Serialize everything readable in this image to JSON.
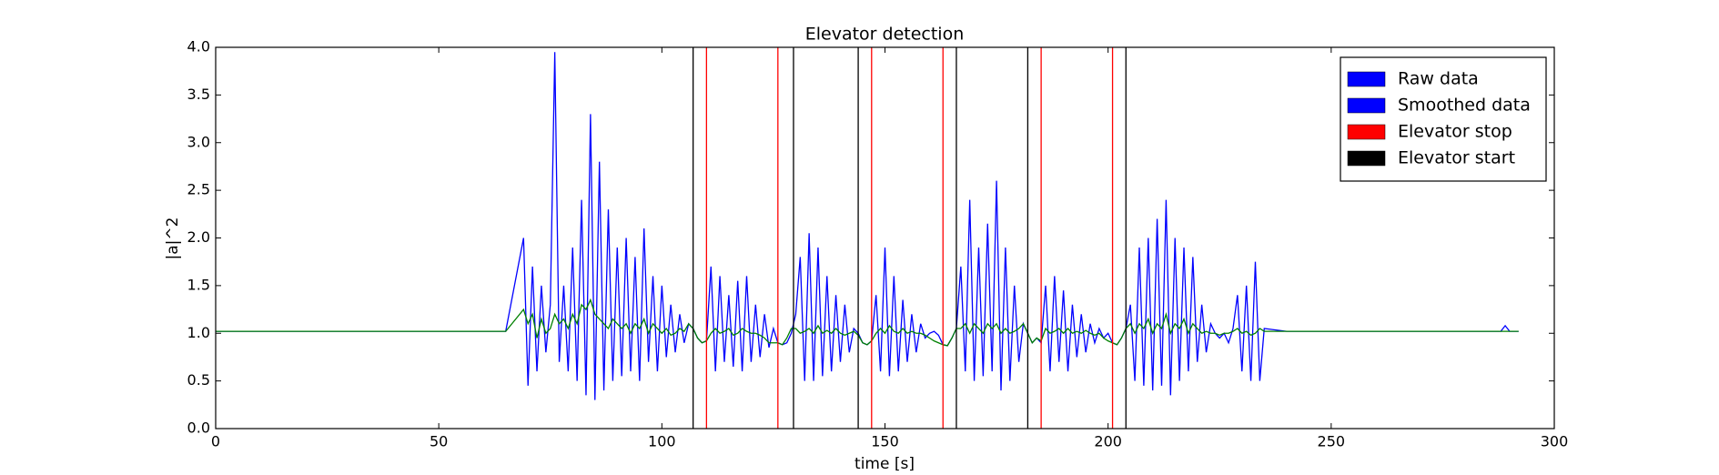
{
  "chart_data": {
    "type": "line",
    "title": "Elevator detection",
    "xlabel": "time [s]",
    "ylabel": "|a|^2",
    "x": [
      0,
      10,
      20,
      30,
      40,
      50,
      60,
      65,
      69,
      70,
      71,
      72,
      73,
      74,
      75,
      76,
      77,
      78,
      79,
      80,
      81,
      82,
      83,
      84,
      85,
      86,
      87,
      88,
      89,
      90,
      91,
      92,
      93,
      94,
      95,
      96,
      97,
      98,
      99,
      100,
      101,
      102,
      103,
      104,
      105,
      106,
      107,
      108,
      109,
      110,
      111,
      112,
      113,
      114,
      115,
      116,
      117,
      118,
      119,
      120,
      121,
      122,
      123,
      124,
      125,
      126,
      127,
      128,
      129,
      130,
      131,
      132,
      133,
      134,
      135,
      136,
      137,
      138,
      139,
      140,
      141,
      142,
      143,
      144,
      145,
      146,
      147,
      148,
      149,
      150,
      151,
      152,
      153,
      154,
      155,
      156,
      157,
      158,
      159,
      160,
      161,
      162,
      163,
      164,
      165,
      166,
      167,
      168,
      169,
      170,
      171,
      172,
      173,
      174,
      175,
      176,
      177,
      178,
      179,
      180,
      181,
      182,
      183,
      184,
      185,
      186,
      187,
      188,
      189,
      190,
      191,
      192,
      193,
      194,
      195,
      196,
      197,
      198,
      199,
      200,
      201,
      202,
      203,
      204,
      205,
      206,
      207,
      208,
      209,
      210,
      211,
      212,
      213,
      214,
      215,
      216,
      217,
      218,
      219,
      220,
      221,
      222,
      223,
      224,
      225,
      226,
      227,
      228,
      229,
      230,
      231,
      232,
      233,
      234,
      235,
      240,
      250,
      260,
      270,
      280,
      288,
      289,
      290,
      292
    ],
    "series": [
      {
        "name": "Raw data",
        "color": "#0000ff",
        "values": [
          1.02,
          1.02,
          1.02,
          1.02,
          1.02,
          1.02,
          1.02,
          1.02,
          2.0,
          0.45,
          1.7,
          0.6,
          1.5,
          0.8,
          1.3,
          3.95,
          0.7,
          1.5,
          0.6,
          1.9,
          0.5,
          2.4,
          0.35,
          3.3,
          0.3,
          2.8,
          0.4,
          2.3,
          0.5,
          1.9,
          0.55,
          2.0,
          0.6,
          1.8,
          0.5,
          2.1,
          0.7,
          1.6,
          0.6,
          1.5,
          0.75,
          1.3,
          0.8,
          1.2,
          0.9,
          1.1,
          1.05,
          0.95,
          0.9,
          0.92,
          1.7,
          0.6,
          1.6,
          0.7,
          1.4,
          0.65,
          1.55,
          0.6,
          1.6,
          0.7,
          1.3,
          0.75,
          1.2,
          0.85,
          1.05,
          0.9,
          0.88,
          0.9,
          1.0,
          1.2,
          1.8,
          0.5,
          2.05,
          0.5,
          1.9,
          0.55,
          1.6,
          0.6,
          1.4,
          0.7,
          1.3,
          0.8,
          1.05,
          1.0,
          0.9,
          0.88,
          0.92,
          1.4,
          0.6,
          1.9,
          0.55,
          1.6,
          0.6,
          1.35,
          0.7,
          1.2,
          0.8,
          1.1,
          0.95,
          1.0,
          1.02,
          0.98,
          0.88,
          0.87,
          0.95,
          1.05,
          1.7,
          0.6,
          2.4,
          0.5,
          1.9,
          0.55,
          2.15,
          0.6,
          2.6,
          0.4,
          1.9,
          0.5,
          1.5,
          0.7,
          1.1,
          1.0,
          0.9,
          0.95,
          0.9,
          1.5,
          0.6,
          1.6,
          0.7,
          1.45,
          0.6,
          1.3,
          0.75,
          1.2,
          0.8,
          1.1,
          0.9,
          1.05,
          0.95,
          1.0,
          0.9,
          0.88,
          0.95,
          1.05,
          1.3,
          0.5,
          1.9,
          0.45,
          2.0,
          0.4,
          2.2,
          0.45,
          2.4,
          0.35,
          2.0,
          0.5,
          1.9,
          0.6,
          1.8,
          0.7,
          1.3,
          0.8,
          1.1,
          1.0,
          0.95,
          1.0,
          0.9,
          1.05,
          1.4,
          0.6,
          1.5,
          0.5,
          1.75,
          0.5,
          1.05,
          1.02,
          1.02,
          1.02,
          1.02,
          1.02,
          1.02,
          1.08,
          1.02,
          1.02
        ]
      },
      {
        "name": "Smoothed data",
        "color": "#008000",
        "legend_color": "#0000ff",
        "values": [
          1.02,
          1.02,
          1.02,
          1.02,
          1.02,
          1.02,
          1.02,
          1.02,
          1.25,
          1.1,
          1.2,
          0.95,
          1.15,
          1.0,
          1.05,
          1.2,
          1.1,
          1.15,
          1.05,
          1.2,
          1.1,
          1.3,
          1.25,
          1.35,
          1.2,
          1.15,
          1.1,
          1.05,
          1.15,
          1.1,
          1.05,
          1.1,
          1.0,
          1.1,
          1.05,
          1.15,
          1.0,
          1.1,
          1.05,
          1.0,
          1.05,
          0.98,
          1.0,
          1.05,
          1.02,
          1.1,
          1.05,
          0.95,
          0.9,
          0.92,
          1.0,
          1.05,
          1.0,
          1.02,
          1.05,
          0.98,
          1.0,
          1.05,
          1.02,
          1.0,
          1.0,
          0.98,
          0.95,
          0.9,
          0.9,
          0.9,
          0.88,
          0.95,
          1.05,
          1.05,
          1.0,
          1.02,
          1.05,
          1.0,
          1.08,
          1.0,
          1.03,
          1.0,
          1.05,
          1.0,
          0.98,
          1.0,
          1.02,
          0.98,
          0.9,
          0.88,
          0.92,
          1.0,
          1.05,
          1.0,
          1.08,
          1.02,
          1.0,
          1.05,
          1.0,
          1.02,
          1.0,
          1.0,
          0.98,
          0.95,
          0.92,
          0.9,
          0.88,
          0.87,
          0.95,
          1.05,
          1.05,
          1.1,
          1.0,
          1.1,
          1.05,
          1.0,
          1.1,
          1.05,
          1.1,
          1.0,
          1.05,
          1.0,
          1.02,
          1.05,
          1.1,
          1.0,
          0.9,
          0.95,
          0.92,
          1.05,
          1.0,
          1.02,
          1.05,
          1.0,
          1.05,
          1.0,
          1.02,
          1.0,
          1.03,
          1.0,
          0.98,
          1.0,
          0.95,
          0.92,
          0.9,
          0.88,
          0.95,
          1.05,
          1.1,
          1.0,
          1.1,
          1.05,
          1.15,
          1.0,
          1.1,
          1.05,
          1.2,
          1.0,
          1.1,
          1.05,
          1.15,
          1.0,
          1.1,
          1.05,
          1.0,
          1.02,
          1.0,
          1.0,
          0.98,
          1.0,
          1.0,
          1.02,
          1.05,
          1.0,
          1.02,
          0.98,
          1.0,
          1.05,
          1.02,
          1.02,
          1.02,
          1.02,
          1.02,
          1.02,
          1.02,
          1.02,
          1.02,
          1.02
        ]
      }
    ],
    "vlines": [
      {
        "name": "Elevator stop",
        "color": "#ff0000",
        "x": [
          110,
          126,
          147,
          163,
          185,
          201
        ]
      },
      {
        "name": "Elevator start",
        "color": "#000000",
        "x": [
          107,
          129.5,
          144,
          166,
          182,
          204
        ]
      }
    ],
    "xlim": [
      0,
      300
    ],
    "xticks": [
      0,
      50,
      100,
      150,
      200,
      250,
      300
    ],
    "ylim": [
      0,
      4
    ],
    "yticks": [
      {
        "value": 0,
        "label": "0.0"
      },
      0.5,
      {
        "value": 1,
        "label": "1.0"
      },
      1.5,
      {
        "value": 2,
        "label": "2.0"
      },
      2.5,
      {
        "value": 3,
        "label": "3.0"
      },
      3.5,
      {
        "value": 4,
        "label": "4.0"
      }
    ],
    "grid": false,
    "legend": "upper right"
  }
}
